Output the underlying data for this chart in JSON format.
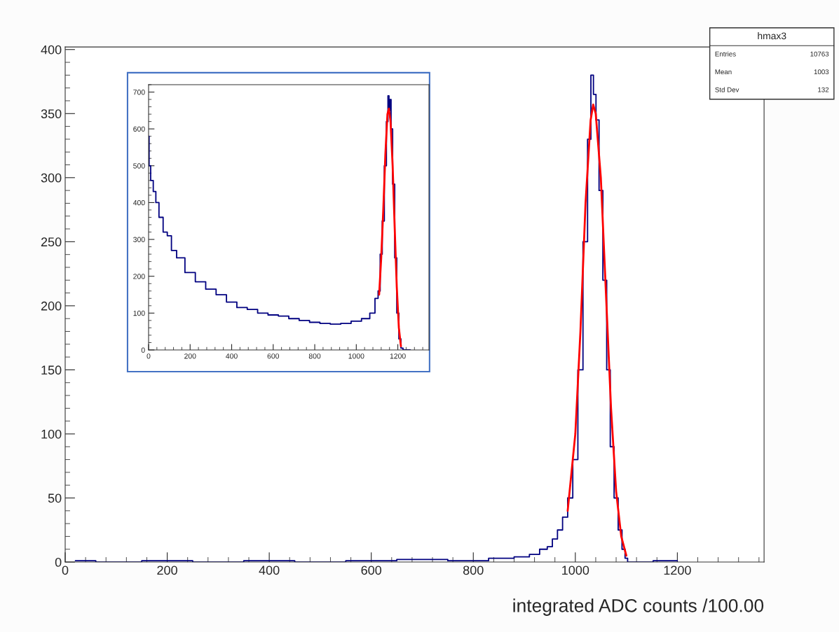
{
  "chart_data": [
    {
      "type": "step",
      "xlabel": "integrated ADC counts /100.00",
      "xlim": [
        0,
        1370
      ],
      "ylim": [
        0,
        402
      ],
      "xticks": [
        0,
        200,
        400,
        600,
        800,
        1000,
        1200
      ],
      "yticks": [
        0,
        50,
        100,
        150,
        200,
        250,
        300,
        350,
        400
      ],
      "grid": false,
      "legend": false,
      "annotations": [
        "hmax3",
        "Entries",
        "10763",
        "Mean",
        "1003",
        "Std Dev",
        "132"
      ],
      "series": [
        {
          "color": "#000080",
          "x": [
            20,
            100,
            200,
            300,
            400,
            500,
            600,
            700,
            800,
            860,
            900,
            920,
            940,
            950,
            960,
            970,
            980,
            990,
            1000,
            1010,
            1020,
            1028,
            1033,
            1038,
            1043,
            1050,
            1058,
            1065,
            1072,
            1080,
            1088,
            1095,
            1100,
            1105,
            1200
          ],
          "values": [
            1,
            0,
            1,
            0,
            1,
            0,
            1,
            2,
            1,
            3,
            4,
            6,
            10,
            12,
            18,
            25,
            35,
            50,
            80,
            150,
            250,
            330,
            380,
            365,
            345,
            290,
            220,
            150,
            90,
            50,
            25,
            10,
            3,
            0,
            1
          ]
        },
        {
          "type": "line",
          "color": "#ff0000",
          "x": [
            985,
            1000,
            1010,
            1020,
            1030,
            1035,
            1040,
            1050,
            1060,
            1070,
            1080,
            1090,
            1100
          ],
          "values": [
            40,
            100,
            180,
            280,
            345,
            357,
            350,
            300,
            210,
            120,
            55,
            20,
            5
          ]
        }
      ]
    },
    {
      "type": "step",
      "xlim": [
        0,
        1350
      ],
      "ylim": [
        0,
        720
      ],
      "xticks": [
        0,
        200,
        400,
        600,
        800,
        1000,
        1200
      ],
      "yticks": [
        0,
        100,
        200,
        300,
        400,
        500,
        600,
        700
      ],
      "grid": false,
      "legend": false,
      "series": [
        {
          "color": "#000080",
          "x": [
            0,
            5,
            15,
            30,
            40,
            60,
            80,
            100,
            120,
            150,
            200,
            250,
            300,
            350,
            400,
            450,
            500,
            550,
            600,
            650,
            700,
            750,
            800,
            850,
            900,
            950,
            1000,
            1050,
            1080,
            1100,
            1110,
            1120,
            1130,
            1140,
            1150,
            1155,
            1160,
            1165,
            1170,
            1180,
            1190,
            1200,
            1210,
            1220,
            1230,
            1260
          ],
          "values": [
            580,
            500,
            460,
            430,
            400,
            360,
            320,
            310,
            270,
            250,
            210,
            185,
            165,
            150,
            130,
            115,
            110,
            100,
            95,
            92,
            85,
            80,
            75,
            72,
            70,
            72,
            78,
            85,
            100,
            140,
            160,
            260,
            350,
            500,
            620,
            690,
            650,
            680,
            600,
            450,
            250,
            100,
            30,
            5,
            0,
            0
          ]
        },
        {
          "type": "line",
          "color": "#ff0000",
          "x": [
            1110,
            1120,
            1130,
            1140,
            1150,
            1157,
            1165,
            1175,
            1185,
            1195,
            1205,
            1215
          ],
          "values": [
            150,
            250,
            380,
            530,
            640,
            655,
            620,
            500,
            330,
            170,
            60,
            10
          ]
        }
      ]
    }
  ]
}
